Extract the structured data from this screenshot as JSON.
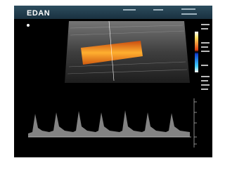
{
  "header": {
    "brand": "EDAN"
  }
}
